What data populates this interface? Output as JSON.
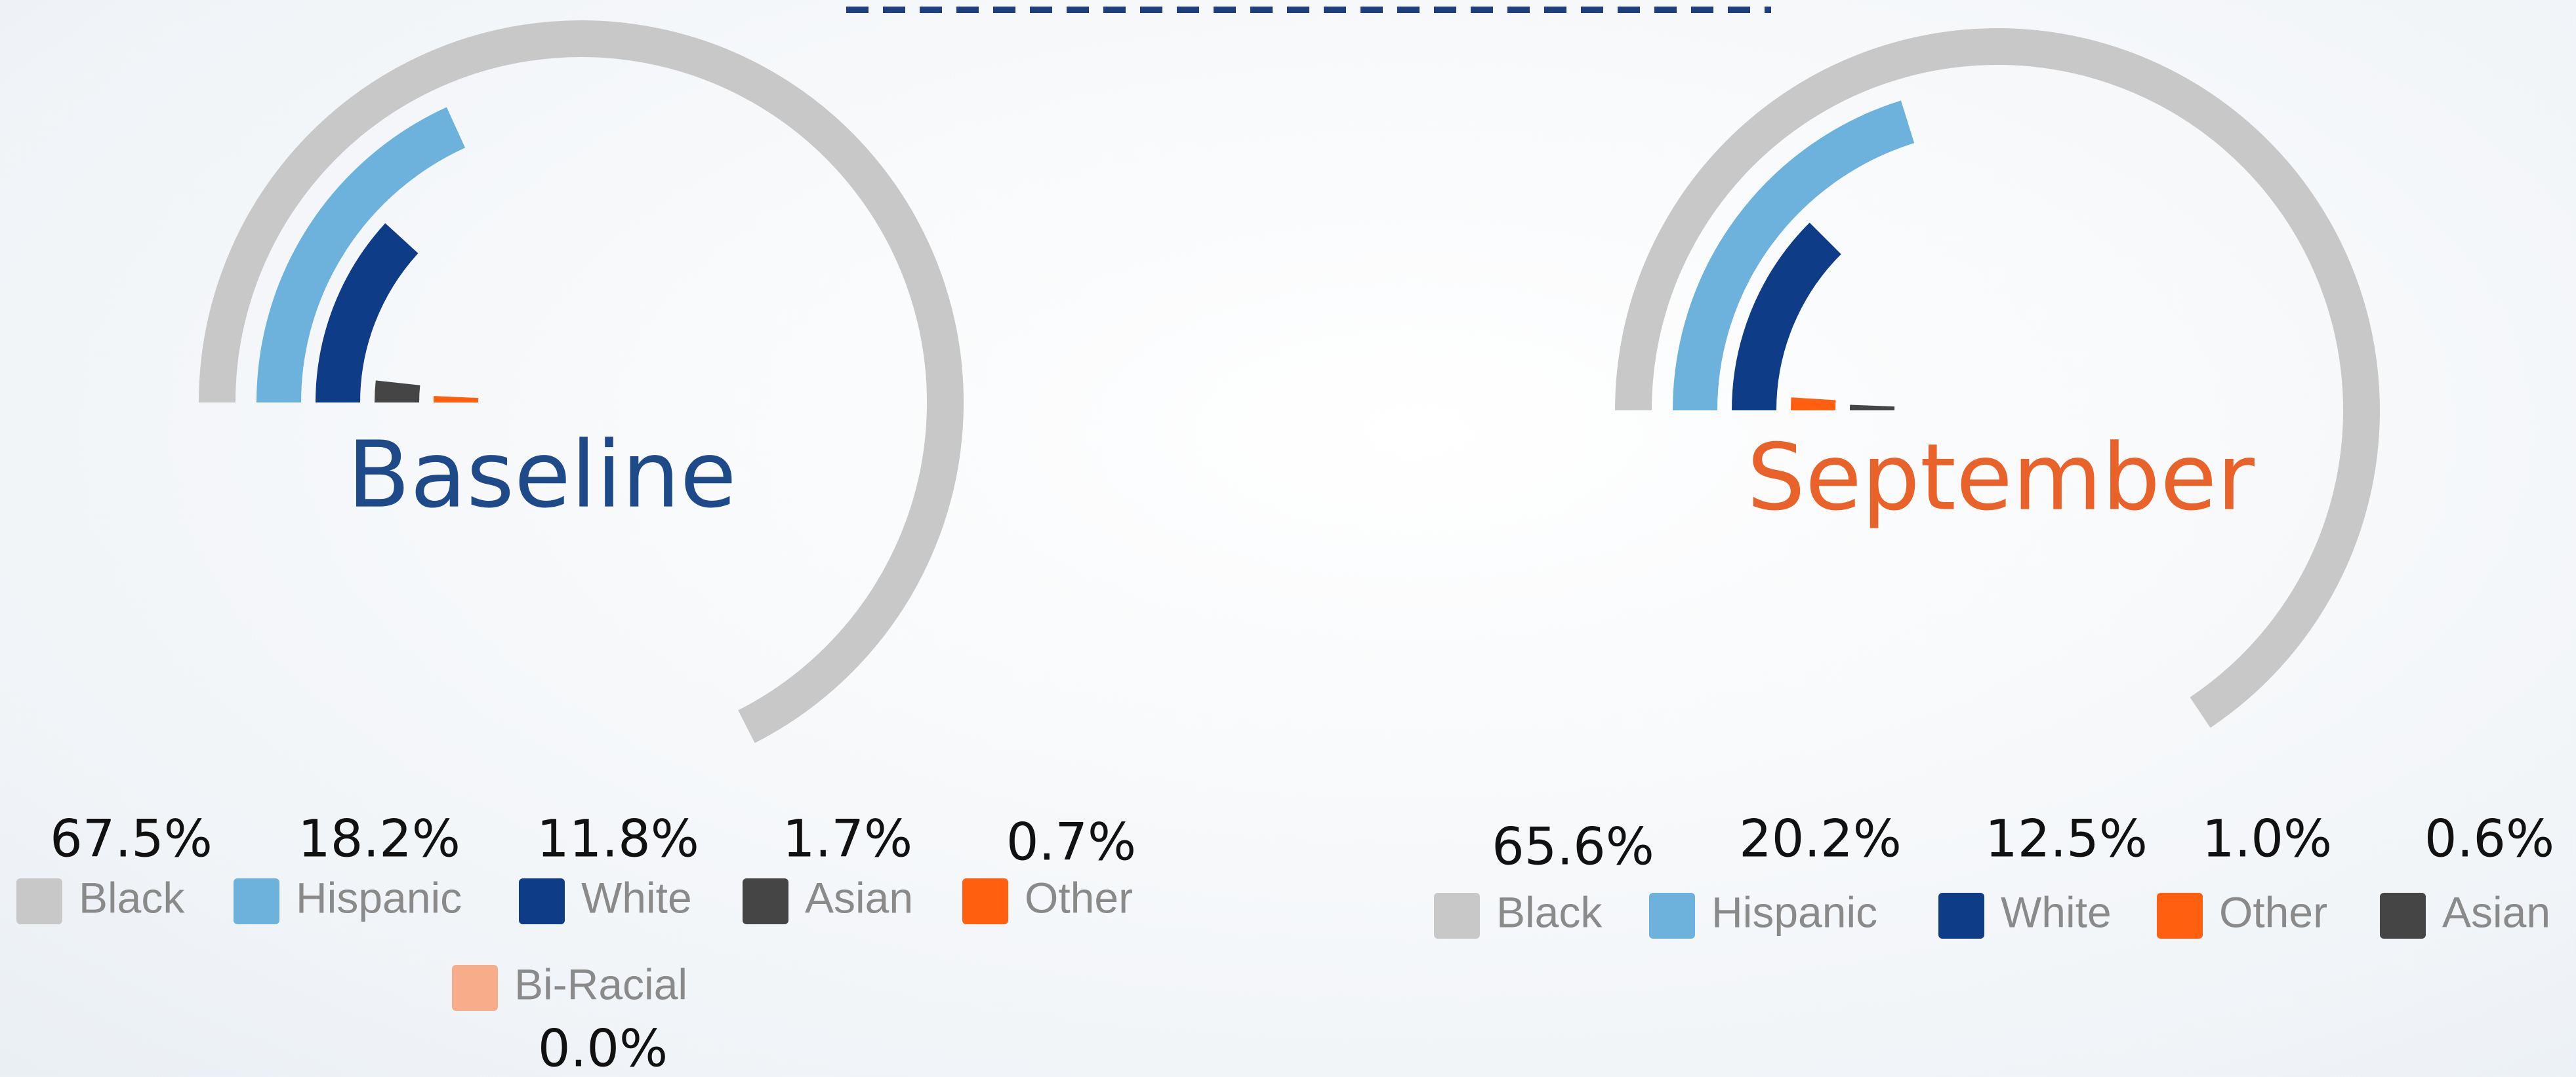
{
  "chart_data": [
    {
      "type": "radial-bar",
      "title": "Baseline",
      "title_color": "#1f4a8a",
      "categories": [
        "Black",
        "Hispanic",
        "White",
        "Asian",
        "Other",
        "Bi-Racial"
      ],
      "values": [
        67.5,
        18.2,
        11.8,
        1.7,
        0.7,
        0.0
      ],
      "value_labels": [
        "67.5%",
        "18.2%",
        "11.8%",
        "1.7%",
        "0.7%",
        "0.0%"
      ],
      "colors": [
        "#c8c8c8",
        "#6cb2dc",
        "#0e3c87",
        "#454545",
        "#ff5f0f",
        "#f7ad8a"
      ]
    },
    {
      "type": "radial-bar",
      "title": "September",
      "title_color": "#e8622a",
      "categories": [
        "Black",
        "Hispanic",
        "White",
        "Other",
        "Asian"
      ],
      "values": [
        65.6,
        20.2,
        12.5,
        1.0,
        0.6
      ],
      "value_labels": [
        "65.6%",
        "20.2%",
        "12.5%",
        "1.0%",
        "0.6%"
      ],
      "colors": [
        "#c8c8c8",
        "#6cb2dc",
        "#0e3c87",
        "#ff5f0f",
        "#454545"
      ]
    }
  ]
}
